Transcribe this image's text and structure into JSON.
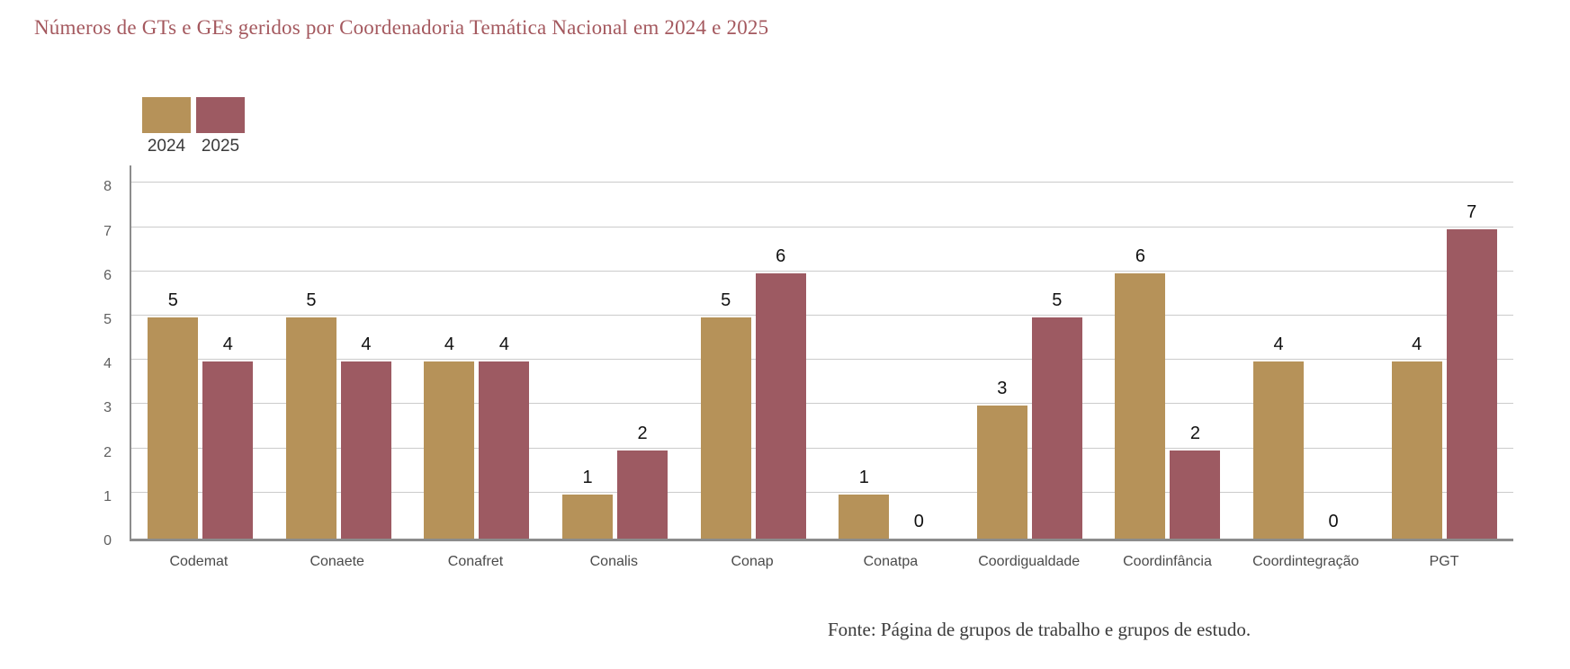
{
  "title": "Números de GTs e GEs geridos por Coordenadoria Temática Nacional em 2024 e 2025",
  "footer": "Fonte: Página de grupos de trabalho e grupos de estudo.",
  "legend": [
    {
      "label": "2024",
      "color": "#B69259"
    },
    {
      "label": "2025",
      "color": "#9D5A62"
    }
  ],
  "colors": {
    "title_text": "#A4585E",
    "gridline": "#CBCBCB",
    "axis_line": "#8C8C8C",
    "tick_text": "#5F5F5F",
    "category_text": "#4A4A4A",
    "value_label": "#111111",
    "footer_text": "#3A3A3A",
    "background": "#FFFFFF"
  },
  "chart_data": {
    "type": "bar",
    "title": "Números de GTs e GEs geridos por Coordenadoria Temática Nacional em 2024 e 2025",
    "categories": [
      "Codemat",
      "Conaete",
      "Conafret",
      "Conalis",
      "Conap",
      "Conatpa",
      "Coordigualdade",
      "Coordinfância",
      "Coordintegração",
      "PGT"
    ],
    "series": [
      {
        "name": "2024",
        "color": "#B69259",
        "values": [
          5,
          5,
          4,
          1,
          5,
          1,
          3,
          6,
          4,
          4
        ]
      },
      {
        "name": "2025",
        "color": "#9D5A62",
        "values": [
          4,
          4,
          4,
          2,
          6,
          0,
          5,
          2,
          0,
          7
        ]
      }
    ],
    "xlabel": "",
    "ylabel": "",
    "ylim": [
      0,
      8
    ],
    "yticks": [
      0,
      1,
      2,
      3,
      4,
      5,
      6,
      7,
      8
    ],
    "grid": true,
    "legend_position": "top-left",
    "value_labels": true,
    "source_note": "Fonte: Página de grupos de trabalho e grupos de estudo."
  }
}
